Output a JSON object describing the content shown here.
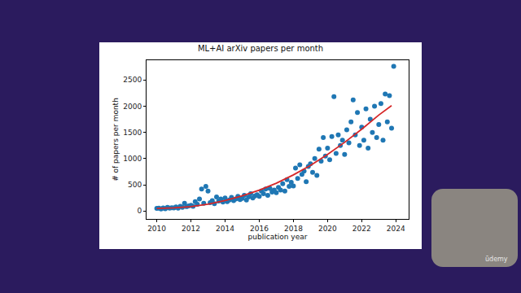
{
  "chart_data": {
    "type": "scatter",
    "title": "ML+AI arXiv papers per month",
    "x_label": "publication year",
    "y_label": "# of papers per month",
    "xlim": [
      2009.4,
      2024.75
    ],
    "xticks": [
      2010,
      2012,
      2014,
      2016,
      2018,
      2020,
      2022,
      2024
    ],
    "ylim": [
      -150,
      2875
    ],
    "yticks": [
      0,
      500,
      1000,
      1500,
      2000,
      2500
    ],
    "grid": false,
    "annotations": [
      "ūdemy"
    ],
    "series": [
      {
        "type": "scatter",
        "color": "#1f77b4",
        "marker": "circle",
        "x": [
          2010.0,
          2010.125,
          2010.25,
          2010.375,
          2010.5,
          2010.625,
          2010.75,
          2010.875,
          2011.0,
          2011.125,
          2011.25,
          2011.375,
          2011.5,
          2011.625,
          2011.75,
          2011.875,
          2012.0,
          2012.125,
          2012.25,
          2012.375,
          2012.5,
          2012.625,
          2012.75,
          2012.875,
          2013.0,
          2013.125,
          2013.25,
          2013.375,
          2013.5,
          2013.625,
          2013.75,
          2013.875,
          2014.0,
          2014.125,
          2014.25,
          2014.375,
          2014.5,
          2014.625,
          2014.75,
          2014.875,
          2015.0,
          2015.125,
          2015.25,
          2015.375,
          2015.5,
          2015.625,
          2015.75,
          2015.875,
          2016.0,
          2016.125,
          2016.25,
          2016.375,
          2016.5,
          2016.625,
          2016.75,
          2016.875,
          2017.0,
          2017.125,
          2017.25,
          2017.375,
          2017.5,
          2017.625,
          2017.75,
          2017.875,
          2018.0,
          2018.125,
          2018.25,
          2018.375,
          2018.5,
          2018.625,
          2018.75,
          2018.875,
          2019.0,
          2019.125,
          2019.25,
          2019.375,
          2019.5,
          2019.625,
          2019.75,
          2019.875,
          2020.0,
          2020.125,
          2020.25,
          2020.375,
          2020.5,
          2020.625,
          2020.75,
          2020.875,
          2021.0,
          2021.125,
          2021.25,
          2021.375,
          2021.5,
          2021.625,
          2021.75,
          2021.875,
          2022.0,
          2022.125,
          2022.25,
          2022.375,
          2022.5,
          2022.625,
          2022.75,
          2022.875,
          2023.0,
          2023.125,
          2023.25,
          2023.375,
          2023.5,
          2023.625,
          2023.75,
          2023.875
        ],
        "values": [
          50,
          55,
          40,
          60,
          45,
          70,
          55,
          65,
          60,
          80,
          55,
          90,
          70,
          150,
          85,
          100,
          110,
          90,
          180,
          130,
          230,
          420,
          150,
          470,
          380,
          160,
          200,
          140,
          270,
          190,
          230,
          170,
          250,
          180,
          210,
          260,
          200,
          230,
          280,
          220,
          240,
          300,
          210,
          270,
          330,
          250,
          290,
          310,
          280,
          380,
          330,
          420,
          300,
          430,
          360,
          400,
          350,
          450,
          400,
          520,
          380,
          600,
          470,
          550,
          480,
          820,
          620,
          880,
          700,
          760,
          560,
          850,
          900,
          740,
          1000,
          680,
          1180,
          950,
          1400,
          1050,
          1200,
          980,
          1420,
          2180,
          1100,
          1450,
          1250,
          1350,
          1080,
          1550,
          1300,
          1700,
          2120,
          1450,
          1880,
          1250,
          1600,
          1350,
          1950,
          1200,
          1750,
          1500,
          2000,
          1400,
          1650,
          2050,
          1350,
          2230,
          1700,
          2200,
          1580,
          2760
        ]
      },
      {
        "type": "line",
        "color": "#d62728",
        "line_style": "solid",
        "x": [
          2010,
          2011,
          2012,
          2013,
          2014,
          2015,
          2016,
          2017,
          2018,
          2019,
          2020,
          2021,
          2022,
          2023,
          2023.75
        ],
        "values": [
          50,
          60,
          85,
          130,
          200,
          290,
          400,
          530,
          690,
          870,
          1080,
          1310,
          1560,
          1830,
          2010
        ]
      }
    ]
  }
}
